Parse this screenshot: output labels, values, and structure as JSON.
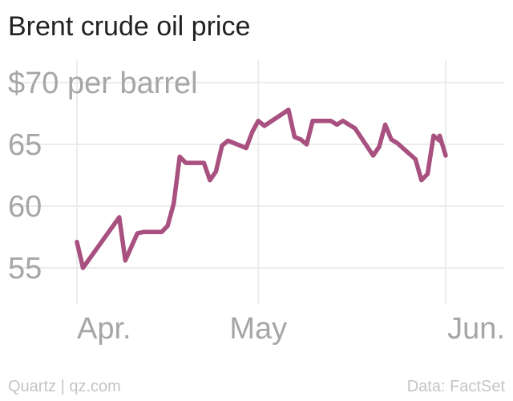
{
  "chart_data": {
    "type": "line",
    "title": "Brent crude oil price",
    "ylabel_prefix": "$",
    "ylabel_suffix": " per barrel",
    "ylim": [
      52,
      72
    ],
    "yticks": [
      55,
      60,
      65,
      70
    ],
    "y_tick_labels": [
      "55",
      "60",
      "65",
      "$70 per barrel"
    ],
    "xlim": [
      "2019-03-31",
      "2019-06-01"
    ],
    "x_ticks": [
      {
        "date": "2019-04-01",
        "label": "Apr."
      },
      {
        "date": "2019-05-01",
        "label": "May"
      },
      {
        "date": "2019-06-01",
        "label": "Jun."
      }
    ],
    "grid": true,
    "series": [
      {
        "color": "#a8507f",
        "x": [
          "2019-04-01",
          "2019-04-02",
          "2019-04-08",
          "2019-04-09",
          "2019-04-11",
          "2019-04-12",
          "2019-04-15",
          "2019-04-16",
          "2019-04-17",
          "2019-04-18",
          "2019-04-19",
          "2019-04-22",
          "2019-04-23",
          "2019-04-24",
          "2019-04-25",
          "2019-04-26",
          "2019-04-29",
          "2019-04-30",
          "2019-05-01",
          "2019-05-02",
          "2019-05-06",
          "2019-05-07",
          "2019-05-08",
          "2019-05-09",
          "2019-05-10",
          "2019-05-13",
          "2019-05-14",
          "2019-05-15",
          "2019-05-16",
          "2019-05-17",
          "2019-05-20",
          "2019-05-21",
          "2019-05-22",
          "2019-05-23",
          "2019-05-24",
          "2019-05-27",
          "2019-05-28",
          "2019-05-29",
          "2019-05-30",
          "2019-05-31"
        ],
        "y": [
          57.1,
          55.0,
          59.1,
          55.6,
          57.8,
          57.9,
          57.9,
          58.4,
          60.2,
          64.0,
          63.5,
          63.5,
          62.1,
          62.8,
          64.9,
          65.3,
          64.7,
          66.0,
          66.9,
          66.5,
          67.8,
          65.6,
          65.4,
          65.0,
          66.9,
          66.9,
          66.6,
          66.9,
          66.6,
          66.3,
          64.1,
          64.8,
          66.6,
          65.4,
          65.1,
          63.8,
          62.1,
          62.6,
          65.7,
          65.3
        ]
      },
      {
        "color": "#a8507f",
        "x": [
          "2019-05-31",
          "2019-06-01"
        ],
        "y": [
          65.7,
          64.1
        ]
      }
    ]
  },
  "footer": {
    "source_left": "Quartz | qz.com",
    "source_right": "Data: FactSet"
  }
}
